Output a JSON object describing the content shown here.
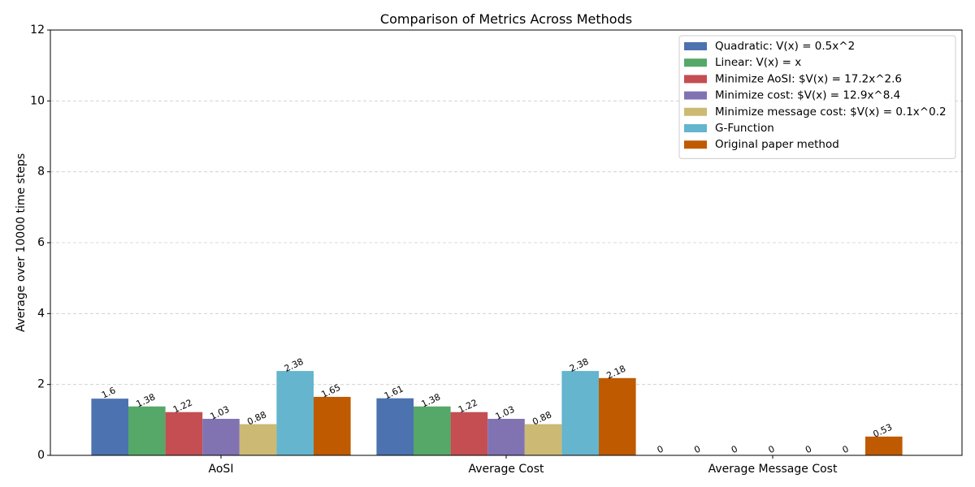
{
  "chart_data": {
    "type": "bar",
    "title": "Comparison of Metrics Across Methods",
    "xlabel": "",
    "ylabel": "Average over 10000 time steps",
    "ylim": [
      0,
      12
    ],
    "yticks": [
      0,
      2,
      4,
      6,
      8,
      10,
      12
    ],
    "grid": "y-dashed",
    "legend_position": "top-right",
    "categories": [
      "AoSI",
      "Average Cost",
      "Average Message Cost"
    ],
    "series": [
      {
        "name": "Quadratic: V(x) = 0.5x^2",
        "color": "#4c72b0",
        "values": [
          1.6,
          1.61,
          0
        ],
        "labels": [
          "1.6",
          "1.61",
          "0"
        ]
      },
      {
        "name": "Linear: V(x) = x",
        "color": "#55a868",
        "values": [
          1.38,
          1.38,
          0
        ],
        "labels": [
          "1.38",
          "1.38",
          "0"
        ]
      },
      {
        "name": "Minimize AoSI: $V(x) = 17.2x^2.6",
        "color": "#c44e52",
        "values": [
          1.22,
          1.22,
          0
        ],
        "labels": [
          "1.22",
          "1.22",
          "0"
        ]
      },
      {
        "name": "Minimize cost: $V(x) = 12.9x^8.4",
        "color": "#8172b2",
        "values": [
          1.03,
          1.03,
          0
        ],
        "labels": [
          "1.03",
          "1.03",
          "0"
        ]
      },
      {
        "name": "Minimize message cost: $V(x) = 0.1x^0.2",
        "color": "#ccb974",
        "values": [
          0.88,
          0.88,
          0
        ],
        "labels": [
          "0.88",
          "0.88",
          "0"
        ]
      },
      {
        "name": "G-Function",
        "color": "#64b5cd",
        "values": [
          2.38,
          2.38,
          0
        ],
        "labels": [
          "2.38",
          "2.38",
          "0"
        ]
      },
      {
        "name": "Original paper method",
        "color": "#c05a00",
        "values": [
          1.65,
          2.18,
          0.53
        ],
        "labels": [
          "1.65",
          "2.18",
          "0.53"
        ]
      }
    ]
  }
}
